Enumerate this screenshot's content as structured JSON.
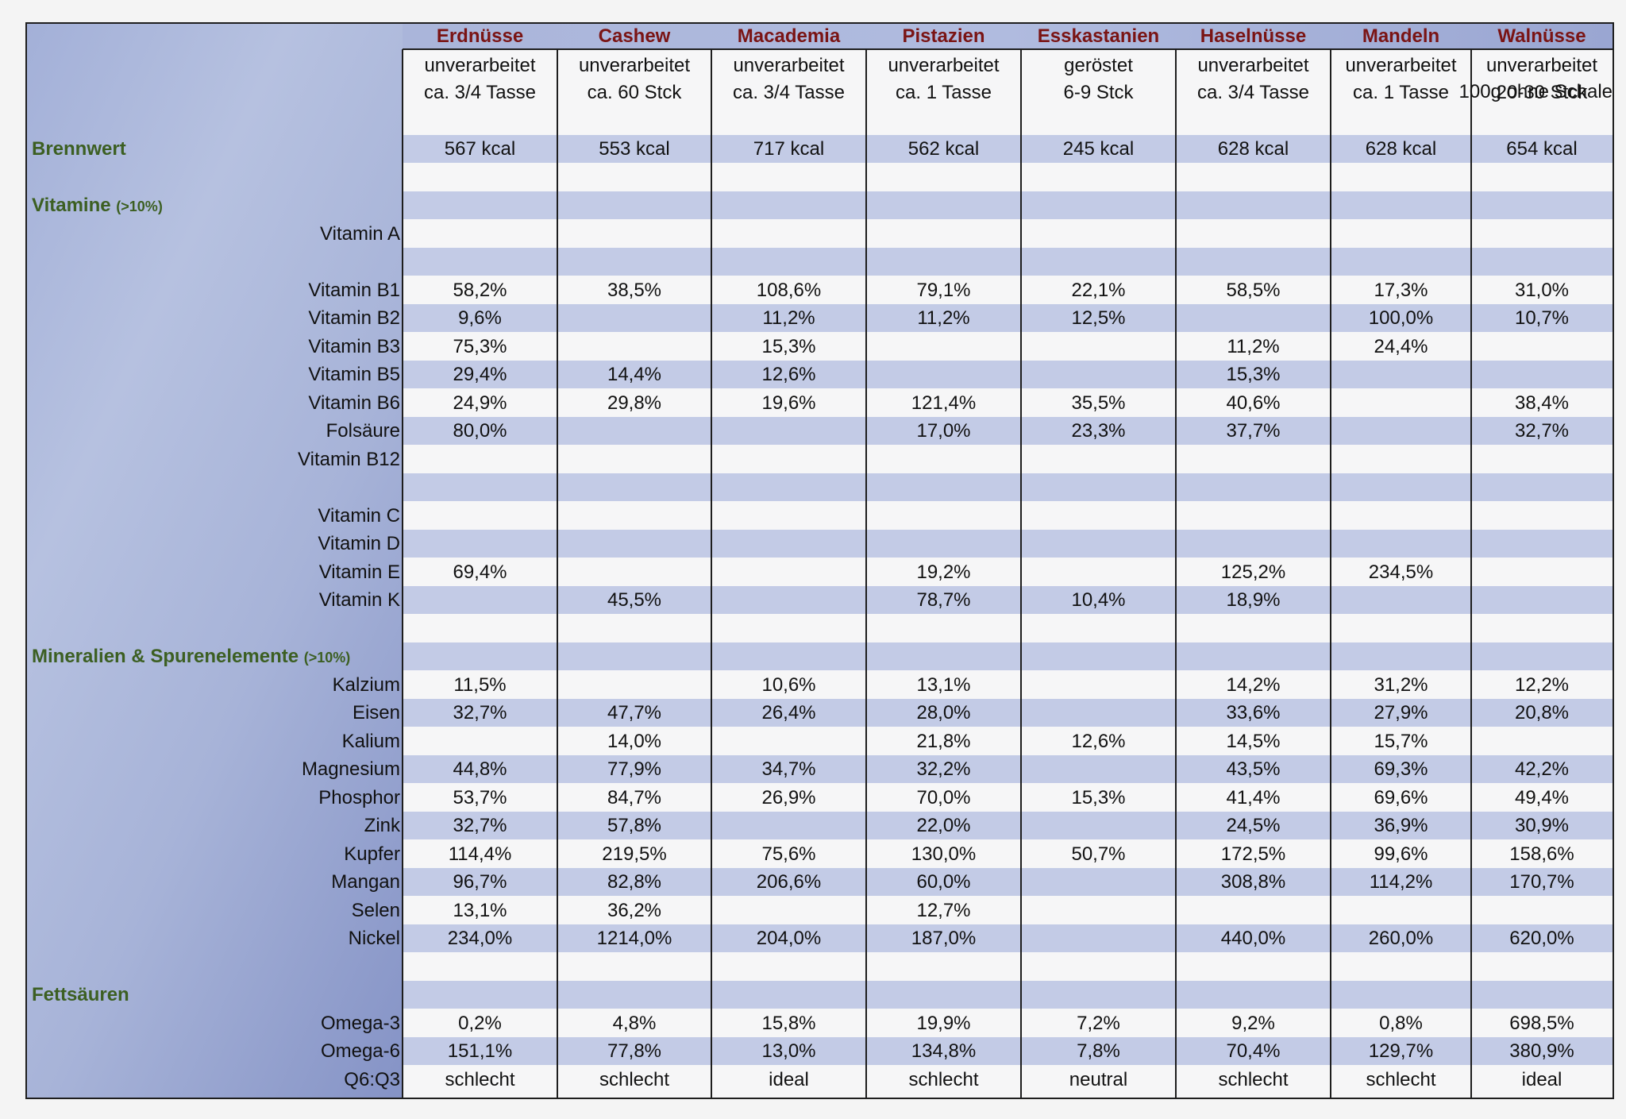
{
  "header_label": "100g ohne Schale",
  "columns": [
    {
      "name": "Erdnüsse",
      "sub1": "unverarbeitet",
      "sub2": "ca. 3/4 Tasse"
    },
    {
      "name": "Cashew",
      "sub1": "unverarbeitet",
      "sub2": "ca. 60 Stck"
    },
    {
      "name": "Macademia",
      "sub1": "unverarbeitet",
      "sub2": "ca. 3/4 Tasse"
    },
    {
      "name": "Pistazien",
      "sub1": "unverarbeitet",
      "sub2": "ca. 1 Tasse"
    },
    {
      "name": "Esskastanien",
      "sub1": "geröstet",
      "sub2": "6-9 Stck"
    },
    {
      "name": "Haselnüsse",
      "sub1": "unverarbeitet",
      "sub2": "ca. 3/4 Tasse"
    },
    {
      "name": "Mandeln",
      "sub1": "unverarbeitet",
      "sub2": "ca. 1 Tasse"
    },
    {
      "name": "Walnüsse",
      "sub1": "unverarbeitet",
      "sub2": "20-30 Stck"
    }
  ],
  "rows": [
    {
      "section": "Brennwert",
      "label": "",
      "values": [
        "567 kcal",
        "553 kcal",
        "717 kcal",
        "562 kcal",
        "245 kcal",
        "628 kcal",
        "628 kcal",
        "654 kcal"
      ]
    },
    {
      "section": "",
      "label": "",
      "values": null
    },
    {
      "section": "Vitamine",
      "section_note": "(>10%)",
      "label": "",
      "values": null
    },
    {
      "section": "",
      "label": "Vitamin A",
      "values": [
        "",
        "",
        "",
        "",
        "",
        "",
        "",
        ""
      ]
    },
    {
      "section": "",
      "label": "",
      "values": null
    },
    {
      "section": "",
      "label": "Vitamin B1",
      "values": [
        "58,2%",
        "38,5%",
        "108,6%",
        "79,1%",
        "22,1%",
        "58,5%",
        "17,3%",
        "31,0%"
      ]
    },
    {
      "section": "",
      "label": "Vitamin B2",
      "values": [
        "9,6%",
        "",
        "11,2%",
        "11,2%",
        "12,5%",
        "",
        "100,0%",
        "10,7%"
      ]
    },
    {
      "section": "",
      "label": "Vitamin B3",
      "values": [
        "75,3%",
        "",
        "15,3%",
        "",
        "",
        "11,2%",
        "24,4%",
        ""
      ]
    },
    {
      "section": "",
      "label": "Vitamin B5",
      "values": [
        "29,4%",
        "14,4%",
        "12,6%",
        "",
        "",
        "15,3%",
        "",
        ""
      ]
    },
    {
      "section": "",
      "label": "Vitamin B6",
      "values": [
        "24,9%",
        "29,8%",
        "19,6%",
        "121,4%",
        "35,5%",
        "40,6%",
        "",
        "38,4%"
      ]
    },
    {
      "section": "",
      "label": "Folsäure",
      "values": [
        "80,0%",
        "",
        "",
        "17,0%",
        "23,3%",
        "37,7%",
        "",
        "32,7%"
      ]
    },
    {
      "section": "",
      "label": "Vitamin B12",
      "values": [
        "",
        "",
        "",
        "",
        "",
        "",
        "",
        ""
      ]
    },
    {
      "section": "",
      "label": "",
      "values": null
    },
    {
      "section": "",
      "label": "Vitamin C",
      "values": [
        "",
        "",
        "",
        "",
        "",
        "",
        "",
        ""
      ]
    },
    {
      "section": "",
      "label": "Vitamin D",
      "values": [
        "",
        "",
        "",
        "",
        "",
        "",
        "",
        ""
      ]
    },
    {
      "section": "",
      "label": "Vitamin E",
      "values": [
        "69,4%",
        "",
        "",
        "19,2%",
        "",
        "125,2%",
        "234,5%",
        ""
      ]
    },
    {
      "section": "",
      "label": "Vitamin K",
      "values": [
        "",
        "45,5%",
        "",
        "78,7%",
        "10,4%",
        "18,9%",
        "",
        ""
      ]
    },
    {
      "section": "",
      "label": "",
      "values": null
    },
    {
      "section": "Mineralien & Spurenelemente",
      "section_note": "(>10%)",
      "label": "",
      "values": null
    },
    {
      "section": "",
      "label": "Kalzium",
      "values": [
        "11,5%",
        "",
        "10,6%",
        "13,1%",
        "",
        "14,2%",
        "31,2%",
        "12,2%"
      ]
    },
    {
      "section": "",
      "label": "Eisen",
      "values": [
        "32,7%",
        "47,7%",
        "26,4%",
        "28,0%",
        "",
        "33,6%",
        "27,9%",
        "20,8%"
      ]
    },
    {
      "section": "",
      "label": "Kalium",
      "values": [
        "",
        "14,0%",
        "",
        "21,8%",
        "12,6%",
        "14,5%",
        "15,7%",
        ""
      ]
    },
    {
      "section": "",
      "label": "Magnesium",
      "values": [
        "44,8%",
        "77,9%",
        "34,7%",
        "32,2%",
        "",
        "43,5%",
        "69,3%",
        "42,2%"
      ]
    },
    {
      "section": "",
      "label": "Phosphor",
      "values": [
        "53,7%",
        "84,7%",
        "26,9%",
        "70,0%",
        "15,3%",
        "41,4%",
        "69,6%",
        "49,4%"
      ]
    },
    {
      "section": "",
      "label": "Zink",
      "values": [
        "32,7%",
        "57,8%",
        "",
        "22,0%",
        "",
        "24,5%",
        "36,9%",
        "30,9%"
      ]
    },
    {
      "section": "",
      "label": "Kupfer",
      "values": [
        "114,4%",
        "219,5%",
        "75,6%",
        "130,0%",
        "50,7%",
        "172,5%",
        "99,6%",
        "158,6%"
      ]
    },
    {
      "section": "",
      "label": "Mangan",
      "values": [
        "96,7%",
        "82,8%",
        "206,6%",
        "60,0%",
        "",
        "308,8%",
        "114,2%",
        "170,7%"
      ]
    },
    {
      "section": "",
      "label": "Selen",
      "values": [
        "13,1%",
        "36,2%",
        "",
        "12,7%",
        "",
        "",
        "",
        ""
      ]
    },
    {
      "section": "",
      "label": "Nickel",
      "values": [
        "234,0%",
        "1214,0%",
        "204,0%",
        "187,0%",
        "",
        "440,0%",
        "260,0%",
        "620,0%"
      ]
    },
    {
      "section": "",
      "label": "",
      "values": null
    },
    {
      "section": "Fettsäuren",
      "label": "",
      "values": null
    },
    {
      "section": "",
      "label": "Omega-3",
      "values": [
        "0,2%",
        "4,8%",
        "15,8%",
        "19,9%",
        "7,2%",
        "9,2%",
        "0,8%",
        "698,5%"
      ]
    },
    {
      "section": "",
      "label": "Omega-6",
      "values": [
        "151,1%",
        "77,8%",
        "13,0%",
        "134,8%",
        "7,8%",
        "70,4%",
        "129,7%",
        "380,9%"
      ]
    },
    {
      "section": "",
      "label": "Q6:Q3",
      "values": [
        "schlecht",
        "schlecht",
        "ideal",
        "schlecht",
        "neutral",
        "schlecht",
        "schlecht",
        "ideal"
      ]
    }
  ],
  "colors": {
    "header_text": "#7a1414",
    "section_text": "#3c5f22",
    "stripe": "#c3cbe6",
    "label_bg": "#a8b4da"
  }
}
